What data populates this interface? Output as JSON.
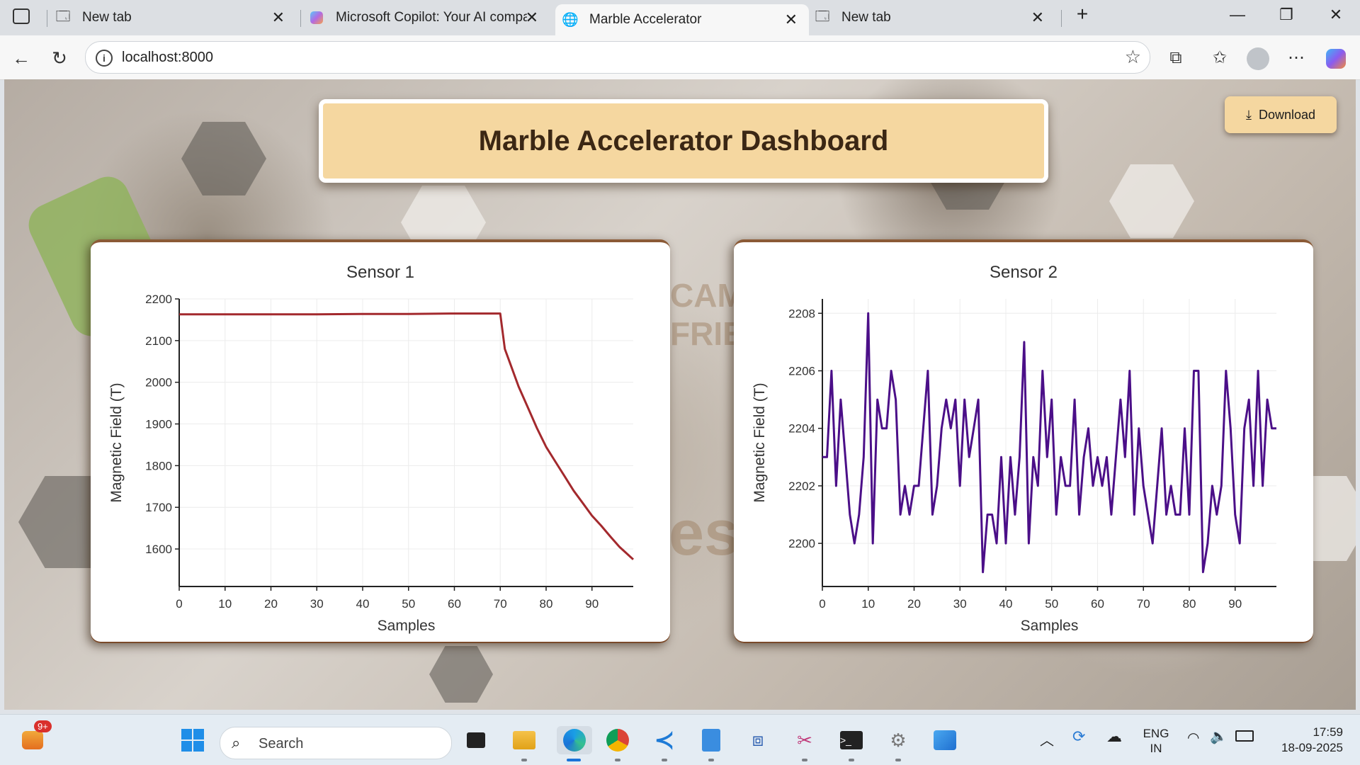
{
  "browser": {
    "tabs": [
      {
        "label": "New tab",
        "active": false
      },
      {
        "label": "Microsoft Copilot: Your AI compan",
        "active": false
      },
      {
        "label": "Marble Accelerator",
        "active": true
      },
      {
        "label": "New tab",
        "active": false
      }
    ],
    "url": "localhost:8000"
  },
  "page": {
    "title": "Marble Accelerator Dashboard",
    "download_label": "Download",
    "bg_text_1": "CAM",
    "bg_text_2": "FRIE",
    "bg_text_3": "es"
  },
  "chart_data": [
    {
      "type": "line",
      "title": "Sensor 1",
      "xlabel": "Samples",
      "ylabel": "Magnetic Field (T)",
      "xlim": [
        0,
        99
      ],
      "ylim": [
        1510,
        2200
      ],
      "xticks": [
        0,
        10,
        20,
        30,
        40,
        50,
        60,
        70,
        80,
        90
      ],
      "yticks": [
        1600,
        1700,
        1800,
        1900,
        2000,
        2100,
        2200
      ],
      "color": "#a3292d",
      "series": [
        {
          "x": [
            0,
            10,
            20,
            30,
            40,
            50,
            60,
            70,
            71,
            72,
            74,
            76,
            78,
            80,
            82,
            84,
            86,
            88,
            90,
            92,
            94,
            96,
            98,
            99
          ],
          "values": [
            2163,
            2163,
            2163,
            2163,
            2164,
            2164,
            2165,
            2165,
            2080,
            2050,
            1990,
            1940,
            1890,
            1845,
            1810,
            1775,
            1740,
            1710,
            1680,
            1656,
            1630,
            1605,
            1585,
            1575
          ]
        }
      ]
    },
    {
      "type": "line",
      "title": "Sensor 2",
      "xlabel": "Samples",
      "ylabel": "Magnetic Field (T)",
      "xlim": [
        0,
        99
      ],
      "ylim": [
        2198.5,
        2208.5
      ],
      "xticks": [
        0,
        10,
        20,
        30,
        40,
        50,
        60,
        70,
        80,
        90
      ],
      "yticks": [
        2200,
        2202,
        2204,
        2206,
        2208
      ],
      "color": "#4b0f88",
      "series": [
        {
          "x": [
            0,
            1,
            2,
            3,
            4,
            5,
            6,
            7,
            8,
            9,
            10,
            11,
            12,
            13,
            14,
            15,
            16,
            17,
            18,
            19,
            20,
            21,
            22,
            23,
            24,
            25,
            26,
            27,
            28,
            29,
            30,
            31,
            32,
            33,
            34,
            35,
            36,
            37,
            38,
            39,
            40,
            41,
            42,
            43,
            44,
            45,
            46,
            47,
            48,
            49,
            50,
            51,
            52,
            53,
            54,
            55,
            56,
            57,
            58,
            59,
            60,
            61,
            62,
            63,
            64,
            65,
            66,
            67,
            68,
            69,
            70,
            71,
            72,
            73,
            74,
            75,
            76,
            77,
            78,
            79,
            80,
            81,
            82,
            83,
            84,
            85,
            86,
            87,
            88,
            89,
            90,
            91,
            92,
            93,
            94,
            95,
            96,
            97,
            98,
            99
          ],
          "values": [
            2203,
            2203,
            2206,
            2202,
            2205,
            2203,
            2201,
            2200,
            2201,
            2203,
            2208,
            2200,
            2205,
            2204,
            2204,
            2206,
            2205,
            2201,
            2202,
            2201,
            2202,
            2202,
            2204,
            2206,
            2201,
            2202,
            2204,
            2205,
            2204,
            2205,
            2202,
            2205,
            2203,
            2204,
            2205,
            2199,
            2201,
            2201,
            2200,
            2203,
            2200,
            2203,
            2201,
            2203,
            2207,
            2200,
            2203,
            2202,
            2206,
            2203,
            2205,
            2201,
            2203,
            2202,
            2202,
            2205,
            2201,
            2203,
            2204,
            2202,
            2203,
            2202,
            2203,
            2201,
            2203,
            2205,
            2203,
            2206,
            2201,
            2204,
            2202,
            2201,
            2200,
            2202,
            2204,
            2201,
            2202,
            2201,
            2201,
            2204,
            2201,
            2206,
            2206,
            2199,
            2200,
            2202,
            2201,
            2202,
            2206,
            2204,
            2201,
            2200,
            2204,
            2205,
            2202,
            2206,
            2202,
            2205,
            2204,
            2204
          ]
        }
      ]
    }
  ],
  "taskbar": {
    "search_placeholder": "Search",
    "badge": "9+",
    "lang_1": "ENG",
    "lang_2": "IN",
    "time": "17:59",
    "date": "18-09-2025"
  }
}
